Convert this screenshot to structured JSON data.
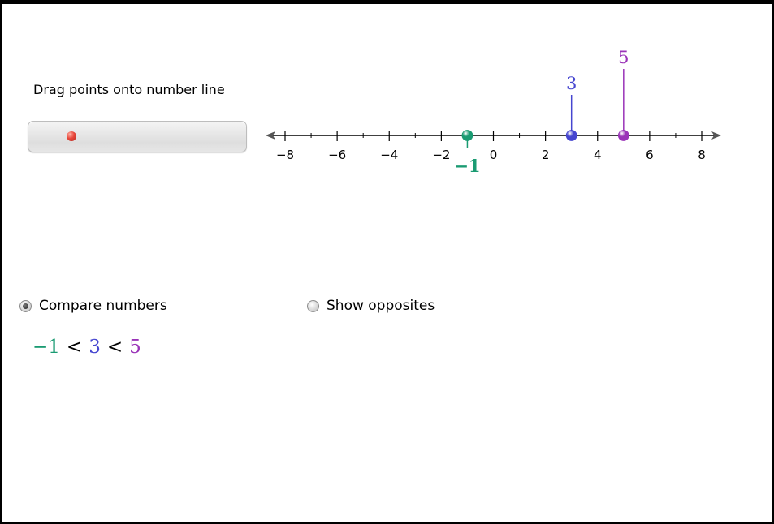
{
  "instruction": "Drag points onto number line",
  "tray": {
    "point_color": "#e8463a",
    "point_icon": "red-point"
  },
  "number_line": {
    "ticks": [
      "−8",
      "−6",
      "−4",
      "−2",
      "0",
      "2",
      "4",
      "6",
      "8"
    ],
    "tick_values": [
      -8,
      -6,
      -4,
      -2,
      0,
      2,
      4,
      6,
      8
    ],
    "min": -8.5,
    "max": 8.5,
    "minor_step": 1,
    "points": [
      {
        "label": "−1",
        "value": -1,
        "color": "#1a9b72",
        "label_position": "below"
      },
      {
        "label": "3",
        "value": 3,
        "color": "#4646d0",
        "label_position": "above"
      },
      {
        "label": "5",
        "value": 5,
        "color": "#9a33b8",
        "label_position": "above"
      }
    ]
  },
  "options": {
    "compare_label": "Compare numbers",
    "compare_checked": true,
    "opposites_label": "Show opposites",
    "opposites_checked": false
  },
  "comparison": {
    "a": "−1",
    "a_color": "#1a9b72",
    "op1": "<",
    "b": "3",
    "b_color": "#4646d0",
    "op2": "<",
    "c": "5",
    "c_color": "#9a33b8"
  }
}
